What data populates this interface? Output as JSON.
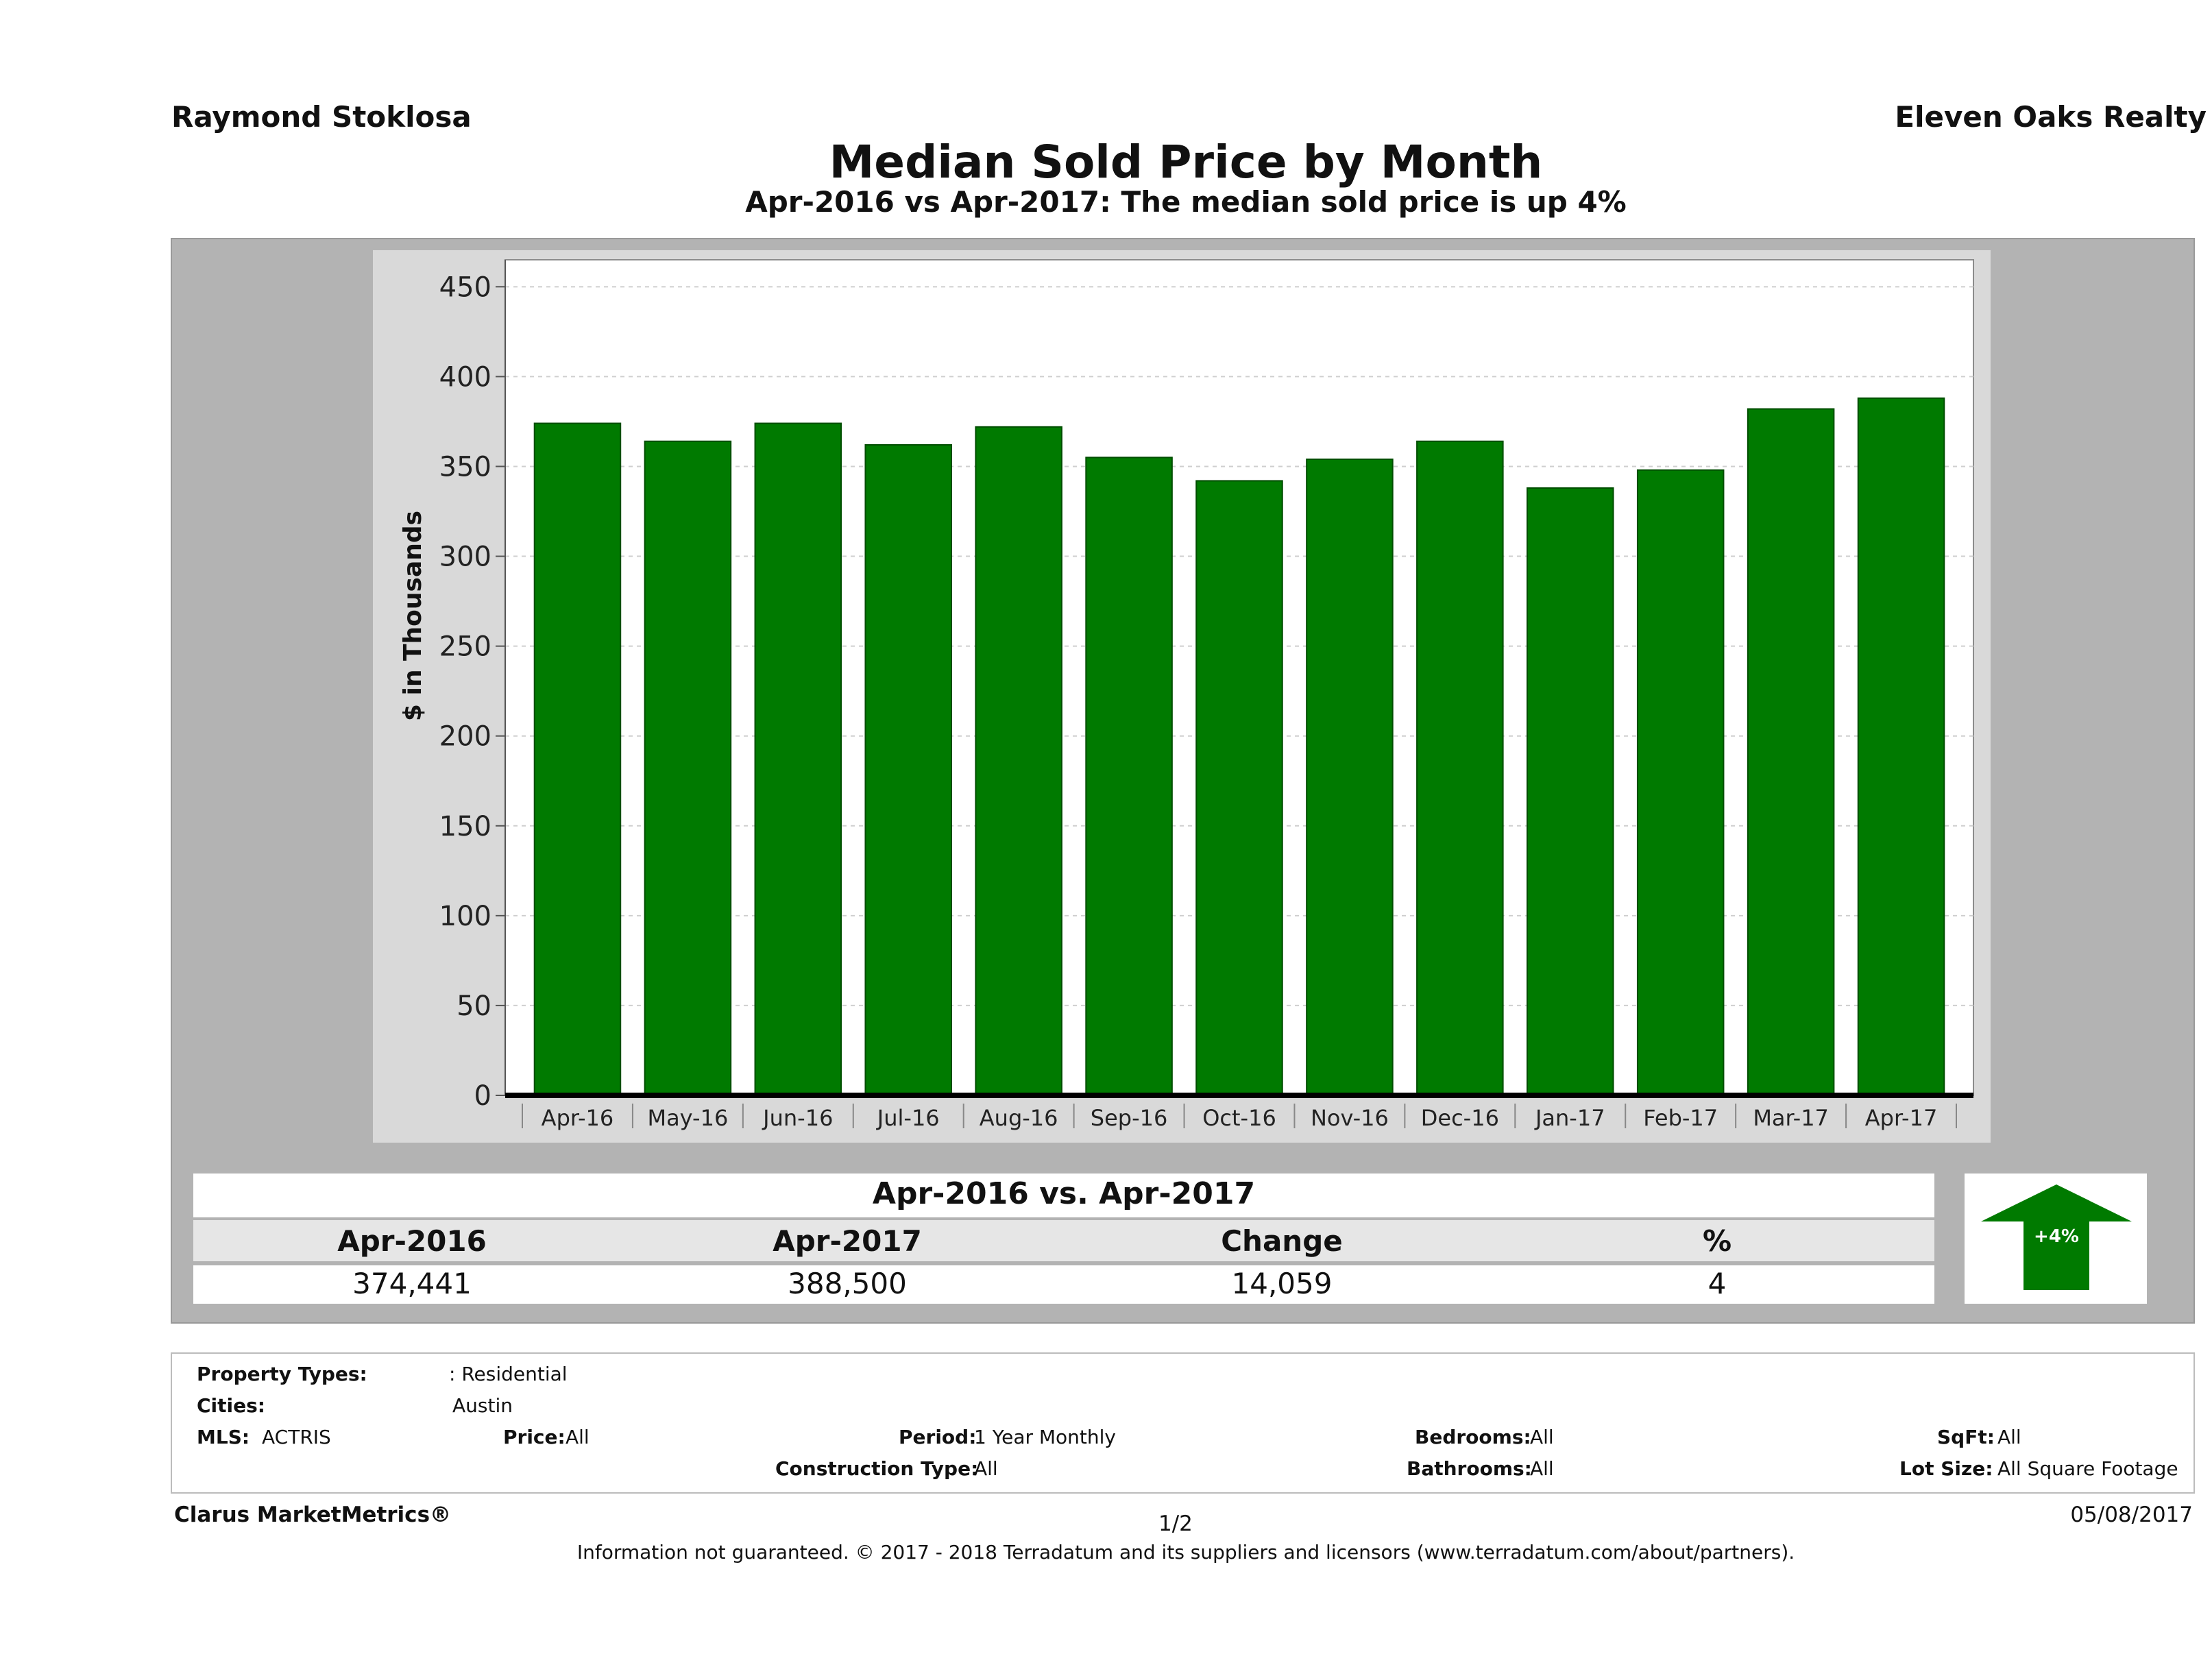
{
  "header": {
    "agent": "Raymond Stoklosa",
    "company": "Eleven Oaks Realty",
    "title": "Median Sold Price by Month",
    "subtitle": "Apr-2016 vs Apr-2017: The median sold price is up 4%"
  },
  "chart_data": {
    "type": "bar",
    "categories": [
      "Apr-16",
      "May-16",
      "Jun-16",
      "Jul-16",
      "Aug-16",
      "Sep-16",
      "Oct-16",
      "Nov-16",
      "Dec-16",
      "Jan-17",
      "Feb-17",
      "Mar-17",
      "Apr-17"
    ],
    "values": [
      374,
      364,
      374,
      362,
      372,
      355,
      342,
      354,
      364,
      338,
      348,
      382,
      388
    ],
    "ylabel": "$ in Thousands",
    "yticks": [
      0,
      50,
      100,
      150,
      200,
      250,
      300,
      350,
      400,
      450
    ],
    "ylim": [
      0,
      465
    ],
    "grid": true,
    "bar_color": "#007a00"
  },
  "summary": {
    "title": "Apr-2016 vs. Apr-2017",
    "headers": [
      "Apr-2016",
      "Apr-2017",
      "Change",
      "%"
    ],
    "values": [
      "374,441",
      "388,500",
      "14,059",
      "4"
    ],
    "badge": "+4%",
    "badge_color": "#007a00"
  },
  "filters": {
    "property_types_label": "Property Types:",
    "property_types_value": ": Residential",
    "cities_label": "Cities:",
    "cities_value": "Austin",
    "mls_label": "MLS:",
    "mls_value": "ACTRIS",
    "price_label": "Price:",
    "price_value": "All",
    "period_label": "Period:",
    "period_value": "1 Year Monthly",
    "construction_label": "Construction Type:",
    "construction_value": "All",
    "bedrooms_label": "Bedrooms:",
    "bedrooms_value": "All",
    "bathrooms_label": "Bathrooms:",
    "bathrooms_value": "All",
    "sqft_label": "SqFt:",
    "sqft_value": "All",
    "lot_label": "Lot Size:",
    "lot_value": "All Square Footage"
  },
  "footer": {
    "brand": "Clarus MarketMetrics®",
    "page": "1/2",
    "date": "05/08/2017",
    "note": "Information not guaranteed. © 2017 - 2018 Terradatum and its suppliers and licensors (www.terradatum.com/about/partners)."
  }
}
